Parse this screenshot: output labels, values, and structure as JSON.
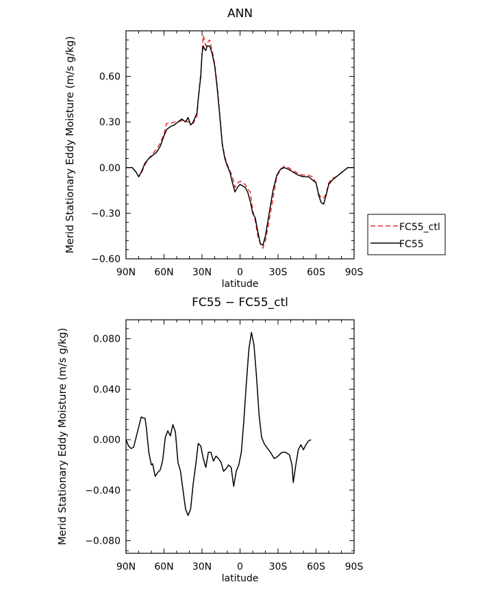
{
  "chart_data": [
    {
      "type": "line",
      "title": "ANN",
      "xlabel": "latitude",
      "ylabel": "Merid Stationary Eddy Moisture (m/s g/kg)",
      "xlim": [
        90,
        -90
      ],
      "ylim": [
        -0.6,
        0.9
      ],
      "x_ticks": [
        90,
        60,
        30,
        0,
        -30,
        -60,
        -90
      ],
      "x_tick_labels": [
        "90N",
        "60N",
        "30N",
        "0",
        "30S",
        "60S",
        "90S"
      ],
      "y_ticks": [
        -0.6,
        -0.3,
        0.0,
        0.3,
        0.6
      ],
      "y_tick_labels": [
        "−0.60",
        "−0.30",
        "0.00",
        "0.30",
        "0.60"
      ],
      "legend": "outside-right",
      "series": [
        {
          "name": "FC55_ctl",
          "color": "#e8262a",
          "dash": "dashed",
          "points": [
            [
              90,
              0.0
            ],
            [
              85,
              0.0
            ],
            [
              82,
              -0.03
            ],
            [
              80,
              -0.06
            ],
            [
              78,
              -0.04
            ],
            [
              75,
              0.02
            ],
            [
              72,
              0.06
            ],
            [
              69,
              0.09
            ],
            [
              66,
              0.12
            ],
            [
              63,
              0.16
            ],
            [
              60,
              0.22
            ],
            [
              58,
              0.29
            ],
            [
              55,
              0.29
            ],
            [
              52,
              0.3
            ],
            [
              49,
              0.3
            ],
            [
              46,
              0.31
            ],
            [
              43,
              0.31
            ],
            [
              41,
              0.3
            ],
            [
              39,
              0.3
            ],
            [
              37,
              0.29
            ],
            [
              34,
              0.34
            ],
            [
              33,
              0.45
            ],
            [
              31,
              0.62
            ],
            [
              30,
              0.75
            ],
            [
              29,
              0.87
            ],
            [
              28,
              0.83
            ],
            [
              27,
              0.8
            ],
            [
              26,
              0.82
            ],
            [
              24,
              0.84
            ],
            [
              22,
              0.77
            ],
            [
              20,
              0.68
            ],
            [
              18,
              0.54
            ],
            [
              16,
              0.35
            ],
            [
              14,
              0.16
            ],
            [
              12,
              0.07
            ],
            [
              10,
              0.02
            ],
            [
              8,
              -0.02
            ],
            [
              6,
              -0.06
            ],
            [
              4,
              -0.13
            ],
            [
              2,
              -0.1
            ],
            [
              0,
              -0.09
            ],
            [
              -2,
              -0.1
            ],
            [
              -4,
              -0.11
            ],
            [
              -6,
              -0.14
            ],
            [
              -8,
              -0.16
            ],
            [
              -10,
              -0.28
            ],
            [
              -12,
              -0.35
            ],
            [
              -14,
              -0.45
            ],
            [
              -16,
              -0.5
            ],
            [
              -18,
              -0.53
            ],
            [
              -20,
              -0.48
            ],
            [
              -23,
              -0.35
            ],
            [
              -26,
              -0.2
            ],
            [
              -29,
              -0.06
            ],
            [
              -32,
              -0.01
            ],
            [
              -35,
              0.01
            ],
            [
              -38,
              0.0
            ],
            [
              -42,
              -0.02
            ],
            [
              -46,
              -0.04
            ],
            [
              -50,
              -0.05
            ],
            [
              -54,
              -0.05
            ],
            [
              -57,
              -0.06
            ],
            [
              -60,
              -0.1
            ],
            [
              -62,
              -0.17
            ],
            [
              -64,
              -0.2
            ],
            [
              -66,
              -0.2
            ],
            [
              -68,
              -0.17
            ],
            [
              -70,
              -0.1
            ],
            [
              -73,
              -0.07
            ],
            [
              -76,
              -0.06
            ],
            [
              -79,
              -0.04
            ],
            [
              -82,
              -0.02
            ],
            [
              -85,
              0.0
            ],
            [
              -90,
              0.0
            ]
          ]
        },
        {
          "name": "FC55",
          "color": "#000000",
          "dash": "solid",
          "points": [
            [
              90,
              0.0
            ],
            [
              85,
              0.0
            ],
            [
              82,
              -0.03
            ],
            [
              80,
              -0.06
            ],
            [
              78,
              -0.03
            ],
            [
              75,
              0.03
            ],
            [
              72,
              0.06
            ],
            [
              69,
              0.08
            ],
            [
              66,
              0.1
            ],
            [
              63,
              0.14
            ],
            [
              60,
              0.21
            ],
            [
              58,
              0.25
            ],
            [
              55,
              0.27
            ],
            [
              52,
              0.28
            ],
            [
              49,
              0.3
            ],
            [
              46,
              0.32
            ],
            [
              43,
              0.3
            ],
            [
              41,
              0.33
            ],
            [
              39,
              0.28
            ],
            [
              37,
              0.3
            ],
            [
              34,
              0.36
            ],
            [
              33,
              0.45
            ],
            [
              31,
              0.6
            ],
            [
              30,
              0.75
            ],
            [
              29,
              0.8
            ],
            [
              28,
              0.78
            ],
            [
              27,
              0.77
            ],
            [
              26,
              0.8
            ],
            [
              24,
              0.8
            ],
            [
              22,
              0.75
            ],
            [
              20,
              0.67
            ],
            [
              18,
              0.52
            ],
            [
              16,
              0.34
            ],
            [
              14,
              0.15
            ],
            [
              12,
              0.06
            ],
            [
              10,
              0.01
            ],
            [
              8,
              -0.03
            ],
            [
              6,
              -0.1
            ],
            [
              4,
              -0.16
            ],
            [
              2,
              -0.13
            ],
            [
              0,
              -0.11
            ],
            [
              -2,
              -0.12
            ],
            [
              -4,
              -0.13
            ],
            [
              -6,
              -0.16
            ],
            [
              -8,
              -0.22
            ],
            [
              -10,
              -0.3
            ],
            [
              -12,
              -0.33
            ],
            [
              -14,
              -0.42
            ],
            [
              -16,
              -0.5
            ],
            [
              -18,
              -0.51
            ],
            [
              -20,
              -0.45
            ],
            [
              -23,
              -0.3
            ],
            [
              -26,
              -0.15
            ],
            [
              -29,
              -0.05
            ],
            [
              -32,
              -0.01
            ],
            [
              -35,
              0.0
            ],
            [
              -38,
              -0.01
            ],
            [
              -42,
              -0.03
            ],
            [
              -46,
              -0.05
            ],
            [
              -50,
              -0.06
            ],
            [
              -54,
              -0.06
            ],
            [
              -57,
              -0.08
            ],
            [
              -60,
              -0.1
            ],
            [
              -62,
              -0.18
            ],
            [
              -64,
              -0.23
            ],
            [
              -66,
              -0.24
            ],
            [
              -68,
              -0.18
            ],
            [
              -70,
              -0.11
            ],
            [
              -73,
              -0.08
            ],
            [
              -76,
              -0.06
            ],
            [
              -79,
              -0.04
            ],
            [
              -82,
              -0.02
            ],
            [
              -85,
              0.0
            ],
            [
              -90,
              0.0
            ]
          ]
        }
      ]
    },
    {
      "type": "line",
      "title": "FC55 − FC55_ctl",
      "xlabel": "latitude",
      "ylabel": "Merid Stationary Eddy Moisture (m/s g/kg)",
      "xlim": [
        90,
        -90
      ],
      "ylim": [
        -0.09,
        0.095
      ],
      "x_ticks": [
        90,
        60,
        30,
        0,
        -30,
        -60,
        -90
      ],
      "x_tick_labels": [
        "90N",
        "60N",
        "30N",
        "0",
        "30S",
        "60S",
        "90S"
      ],
      "y_ticks": [
        -0.08,
        -0.04,
        0.0,
        0.04,
        0.08
      ],
      "y_tick_labels": [
        "−0.080",
        "−0.040",
        "0.000",
        "0.040",
        "0.080"
      ],
      "series": [
        {
          "color": "#000000",
          "dash": "solid",
          "points": [
            [
              90,
              0.0
            ],
            [
              88,
              -0.005
            ],
            [
              86,
              -0.007
            ],
            [
              84,
              -0.006
            ],
            [
              82,
              0.002
            ],
            [
              80,
              0.01
            ],
            [
              78,
              0.018
            ],
            [
              76,
              0.017
            ],
            [
              75,
              0.017
            ],
            [
              74,
              0.01
            ],
            [
              72,
              -0.01
            ],
            [
              70,
              -0.02
            ],
            [
              69,
              -0.019
            ],
            [
              67,
              -0.029
            ],
            [
              65,
              -0.026
            ],
            [
              63,
              -0.024
            ],
            [
              61,
              -0.016
            ],
            [
              59,
              0.002
            ],
            [
              57,
              0.007
            ],
            [
              55,
              0.003
            ],
            [
              53,
              0.012
            ],
            [
              51,
              0.006
            ],
            [
              49,
              -0.018
            ],
            [
              47,
              -0.025
            ],
            [
              45,
              -0.04
            ],
            [
              43,
              -0.055
            ],
            [
              41,
              -0.06
            ],
            [
              39,
              -0.055
            ],
            [
              37,
              -0.035
            ],
            [
              35,
              -0.02
            ],
            [
              33,
              -0.003
            ],
            [
              31,
              -0.005
            ],
            [
              29,
              -0.015
            ],
            [
              27,
              -0.022
            ],
            [
              25,
              -0.01
            ],
            [
              23,
              -0.01
            ],
            [
              21,
              -0.017
            ],
            [
              19,
              -0.013
            ],
            [
              17,
              -0.015
            ],
            [
              15,
              -0.018
            ],
            [
              13,
              -0.025
            ],
            [
              11,
              -0.023
            ],
            [
              9,
              -0.02
            ],
            [
              7,
              -0.022
            ],
            [
              5,
              -0.037
            ],
            [
              3,
              -0.025
            ],
            [
              1,
              -0.02
            ],
            [
              -1,
              -0.01
            ],
            [
              -3,
              0.015
            ],
            [
              -5,
              0.045
            ],
            [
              -7,
              0.072
            ],
            [
              -9,
              0.085
            ],
            [
              -11,
              0.075
            ],
            [
              -13,
              0.05
            ],
            [
              -15,
              0.02
            ],
            [
              -17,
              0.002
            ],
            [
              -19,
              -0.003
            ],
            [
              -21,
              -0.006
            ],
            [
              -24,
              -0.01
            ],
            [
              -27,
              -0.015
            ],
            [
              -30,
              -0.013
            ],
            [
              -33,
              -0.01
            ],
            [
              -36,
              -0.01
            ],
            [
              -39,
              -0.012
            ],
            [
              -41,
              -0.02
            ],
            [
              -42,
              -0.034
            ],
            [
              -44,
              -0.02
            ],
            [
              -46,
              -0.008
            ],
            [
              -48,
              -0.004
            ],
            [
              -50,
              -0.008
            ],
            [
              -52,
              -0.004
            ],
            [
              -54,
              -0.001
            ],
            [
              -56,
              0.0
            ]
          ]
        }
      ]
    }
  ]
}
